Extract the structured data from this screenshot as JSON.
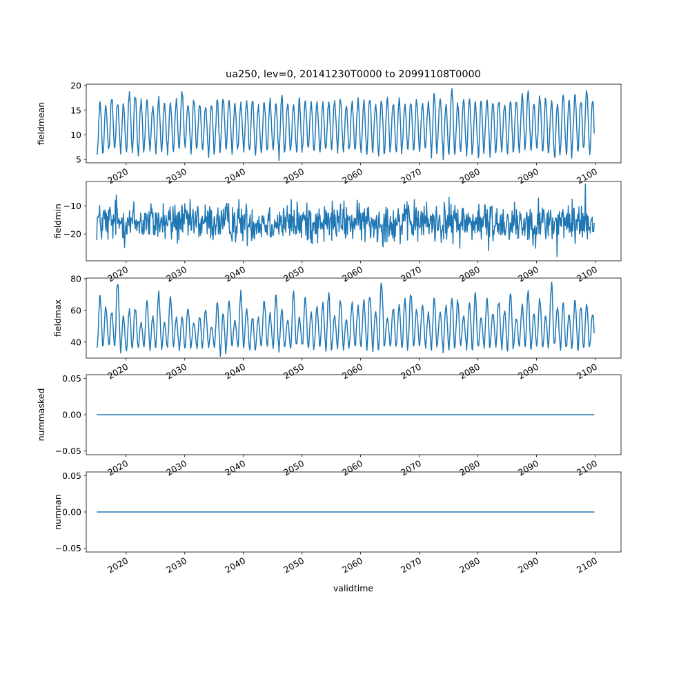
{
  "figure": {
    "title": "ua250, lev=0, 20141230T0000 to 20991108T0000",
    "xlabel": "validtime"
  },
  "chart_data": [
    {
      "type": "line",
      "ylabel": "fieldmean",
      "xlim": [
        2013.2,
        2104.4
      ],
      "ylim": [
        4.3,
        20.3
      ],
      "yticks": [
        5,
        10,
        15,
        20
      ],
      "xticks": [
        2020,
        2030,
        2040,
        2050,
        2060,
        2070,
        2080,
        2090,
        2100
      ],
      "series": [
        {
          "color": "#1f77b4",
          "kind": "seasonal",
          "x_start": 2014.99,
          "x_end": 2099.85,
          "samples_per_year": 12,
          "peak_month_values": [
            16.2,
            15.9,
            17.5,
            16.7,
            16.1,
            18.3,
            17.9,
            16.8,
            17.1,
            15.6,
            17.4,
            16.2,
            16.6,
            16.9,
            18.8,
            16.4,
            17.0,
            16.2,
            15.9,
            16.5,
            16.8,
            17.3,
            17.0,
            16.0,
            16.2,
            16.9,
            17.4,
            15.7,
            16.6,
            17.0,
            16.1,
            17.7,
            16.4,
            15.8,
            17.0,
            16.5,
            16.3,
            16.9,
            16.3,
            16.4,
            17.1,
            17.2,
            16.2,
            16.4,
            17.0,
            16.8,
            17.6,
            16.1,
            17.1,
            17.5,
            16.6,
            17.2,
            16.1,
            16.7,
            16.9,
            16.7,
            16.4,
            18.1,
            17.3,
            16.1,
            19.5,
            16.3,
            16.9,
            17.0,
            16.4,
            16.7,
            17.2,
            16.6,
            17.1,
            16.2,
            16.9,
            16.9,
            17.9,
            18.8,
            16.3,
            17.7,
            17.2,
            16.5,
            16.4,
            17.8,
            16.9,
            18.1,
            17.1,
            19.1,
            17.3
          ],
          "trough_month_values": [
            5.8,
            6.3,
            6.9,
            7.1,
            6.5,
            6.8,
            6.2,
            6.0,
            7.4,
            6.9,
            6.2,
            7.0,
            6.3,
            6.6,
            7.5,
            7.2,
            6.2,
            7.0,
            6.7,
            5.8,
            6.4,
            7.2,
            7.2,
            6.3,
            7.3,
            6.8,
            6.9,
            6.1,
            6.4,
            6.8,
            7.0,
            5.4,
            6.7,
            7.2,
            5.9,
            7.2,
            6.9,
            6.3,
            6.4,
            7.2,
            7.2,
            6.7,
            6.6,
            7.0,
            6.5,
            6.3,
            6.4,
            6.7,
            6.1,
            6.3,
            6.8,
            5.9,
            7.2,
            6.4,
            7.1,
            6.3,
            7.4,
            5.4,
            7.2,
            5.2,
            6.4,
            6.1,
            6.8,
            6.1,
            6.7,
            5.0,
            7.1,
            5.9,
            6.6,
            6.5,
            6.6,
            6.5,
            6.6,
            7.3,
            6.6,
            6.5,
            6.2,
            6.1,
            4.8,
            7.3,
            5.3,
            6.9,
            6.8,
            7.2,
            5.4
          ]
        }
      ]
    },
    {
      "type": "line",
      "ylabel": "fieldmin",
      "xlim": [
        2013.2,
        2104.4
      ],
      "ylim": [
        -29.6,
        -1.2
      ],
      "yticks": [
        -20,
        -10
      ],
      "xticks": [
        2020,
        2030,
        2040,
        2050,
        2060,
        2070,
        2080,
        2090,
        2100
      ],
      "series": [
        {
          "color": "#1f77b4",
          "kind": "noisy",
          "x_start": 2014.99,
          "x_end": 2099.85,
          "samples_per_year": 12,
          "mean": -15.8,
          "spread": 4.3,
          "min": -28.1,
          "max": -2.1,
          "extrema": [
            [
              2093.5,
              -28.1
            ],
            [
              2098.3,
              -2.1
            ],
            [
              2018.3,
              -6.0
            ],
            [
              2081.8,
              -26.0
            ]
          ]
        }
      ]
    },
    {
      "type": "line",
      "ylabel": "fieldmax",
      "xlim": [
        2013.2,
        2104.4
      ],
      "ylim": [
        29.9,
        80.4
      ],
      "yticks": [
        40,
        60,
        80
      ],
      "xticks": [
        2020,
        2030,
        2040,
        2050,
        2060,
        2070,
        2080,
        2090,
        2100
      ],
      "series": [
        {
          "color": "#1f77b4",
          "kind": "seasonal",
          "x_start": 2014.99,
          "x_end": 2099.85,
          "samples_per_year": 12,
          "peak_month_values": [
            68,
            62,
            59,
            79,
            56,
            60,
            61,
            52,
            66,
            56,
            71,
            52,
            69,
            55,
            56,
            62,
            52,
            56,
            61,
            50,
            64,
            58,
            66,
            53,
            71,
            61,
            56,
            55,
            66,
            58,
            69,
            60,
            54,
            71,
            55,
            67,
            58,
            63,
            64,
            70,
            57,
            66,
            55,
            64,
            62,
            66,
            70,
            59,
            78,
            55,
            62,
            63,
            67,
            71,
            60,
            64,
            58,
            67,
            59,
            63,
            68,
            66,
            56,
            64,
            70,
            55,
            68,
            58,
            66,
            60,
            71,
            55,
            63,
            72,
            58,
            67,
            56,
            76,
            62,
            64,
            57,
            66,
            63,
            64,
            58
          ],
          "trough_month_values": [
            36,
            38,
            37,
            36,
            34,
            35,
            36,
            37,
            38,
            35,
            37,
            36,
            38,
            37,
            35,
            36,
            37,
            35,
            38,
            37,
            36,
            32,
            37,
            38,
            36,
            37,
            35,
            36,
            38,
            37,
            36,
            35,
            37,
            36,
            38,
            37,
            35,
            36,
            37,
            34,
            36,
            37,
            35,
            38,
            36,
            37,
            36,
            35,
            37,
            38,
            36,
            37,
            35,
            36,
            38,
            37,
            36,
            35,
            37,
            34,
            36,
            37,
            38,
            36,
            35,
            37,
            36,
            38,
            37,
            35,
            36,
            37,
            38,
            36,
            35,
            37,
            36,
            37,
            38,
            35,
            36,
            37,
            35,
            36,
            37
          ]
        }
      ]
    },
    {
      "type": "line",
      "ylabel": "nummasked",
      "xlim": [
        2013.2,
        2104.4
      ],
      "ylim": [
        -0.055,
        0.055
      ],
      "yticks": [
        -0.05,
        0.0,
        0.05
      ],
      "ytick_labels": [
        "−0.05",
        "0.00",
        "0.05"
      ],
      "xticks": [
        2020,
        2030,
        2040,
        2050,
        2060,
        2070,
        2080,
        2090,
        2100
      ],
      "series": [
        {
          "color": "#1f77b4",
          "kind": "constant",
          "x": [
            2014.99,
            2099.85
          ],
          "y": [
            0,
            0
          ]
        }
      ]
    },
    {
      "type": "line",
      "ylabel": "numnan",
      "xlim": [
        2013.2,
        2104.4
      ],
      "ylim": [
        -0.055,
        0.055
      ],
      "yticks": [
        -0.05,
        0.0,
        0.05
      ],
      "ytick_labels": [
        "−0.05",
        "0.00",
        "0.05"
      ],
      "xticks": [
        2020,
        2030,
        2040,
        2050,
        2060,
        2070,
        2080,
        2090,
        2100
      ],
      "xtick_labels": [
        "2020",
        "2030",
        "2040",
        "2050",
        "2060",
        "2070",
        "2080",
        "2090",
        "2100"
      ],
      "series": [
        {
          "color": "#1f77b4",
          "kind": "constant",
          "x": [
            2014.99,
            2099.85
          ],
          "y": [
            0,
            0
          ]
        }
      ]
    }
  ]
}
